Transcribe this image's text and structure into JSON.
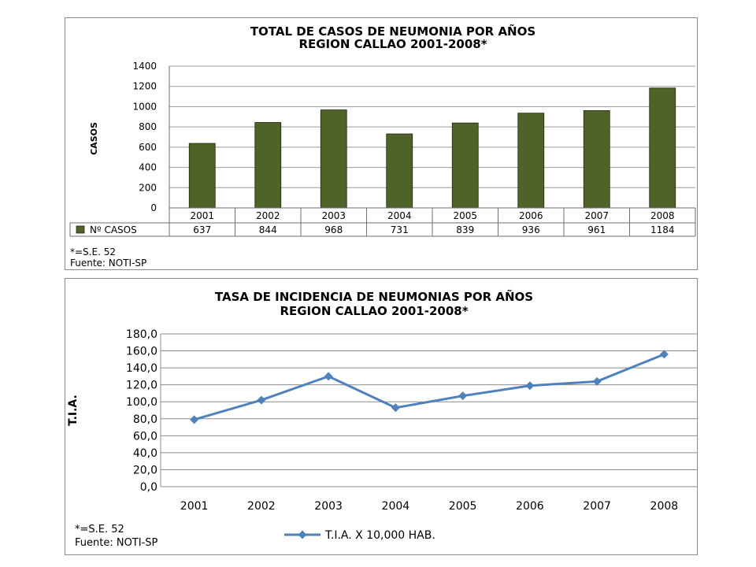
{
  "chart_data": [
    {
      "type": "bar",
      "title": [
        "TOTAL DE CASOS DE NEUMONIA POR AÑOS",
        "REGION CALLAO  2001-2008*"
      ],
      "ylabel": "CASOS",
      "xlabel": "",
      "ylim": [
        0,
        1400
      ],
      "yticks": [
        "0",
        "200",
        "400",
        "600",
        "800",
        "1000",
        "1200",
        "1400"
      ],
      "categories": [
        "2001",
        "2002",
        "2003",
        "2004",
        "2005",
        "2006",
        "2007",
        "2008"
      ],
      "series": [
        {
          "name": "Nº CASOS",
          "values": [
            637,
            844,
            968,
            731,
            839,
            936,
            961,
            1184
          ],
          "color": "#4f6228"
        }
      ],
      "data_table": true,
      "grid": true,
      "notes": [
        "*=S.E. 52",
        "Fuente: NOTI-SP"
      ]
    },
    {
      "type": "line",
      "title": [
        "TASA DE INCIDENCIA DE NEUMONIAS POR AÑOS",
        "REGION CALLAO 2001-2008*"
      ],
      "ylabel": "T.I.A.",
      "xlabel": "",
      "ylim": [
        0,
        180
      ],
      "yticks": [
        "0,0",
        "20,0",
        "40,0",
        "60,0",
        "80,0",
        "100,0",
        "120,0",
        "140,0",
        "160,0",
        "180,0"
      ],
      "categories": [
        "2001",
        "2002",
        "2003",
        "2004",
        "2005",
        "2006",
        "2007",
        "2008"
      ],
      "series": [
        {
          "name": "T.I.A. X 10,000 HAB.",
          "values": [
            79,
            102,
            130,
            93,
            107,
            119,
            124,
            156
          ],
          "color": "#4f81bd",
          "marker": "diamond"
        }
      ],
      "legend": "bottom",
      "grid": true,
      "notes": [
        "*=S.E. 52",
        "Fuente: NOTI-SP"
      ]
    }
  ]
}
